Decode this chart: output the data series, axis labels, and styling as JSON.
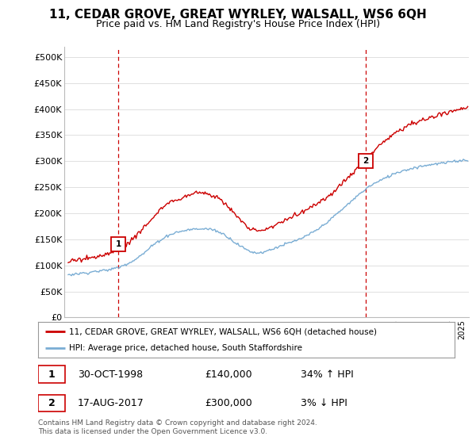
{
  "title": "11, CEDAR GROVE, GREAT WYRLEY, WALSALL, WS6 6QH",
  "subtitle": "Price paid vs. HM Land Registry's House Price Index (HPI)",
  "ylabel_ticks": [
    "£0",
    "£50K",
    "£100K",
    "£150K",
    "£200K",
    "£250K",
    "£300K",
    "£350K",
    "£400K",
    "£450K",
    "£500K"
  ],
  "ytick_values": [
    0,
    50000,
    100000,
    150000,
    200000,
    250000,
    300000,
    350000,
    400000,
    450000,
    500000
  ],
  "ylim": [
    0,
    520000
  ],
  "xlim_start": 1994.7,
  "xlim_end": 2025.5,
  "transaction1_x": 1998.83,
  "transaction1_y": 140000,
  "transaction1_label": "1",
  "transaction1_date": "30-OCT-1998",
  "transaction1_price": "£140,000",
  "transaction1_hpi": "34% ↑ HPI",
  "transaction2_x": 2017.62,
  "transaction2_y": 300000,
  "transaction2_label": "2",
  "transaction2_date": "17-AUG-2017",
  "transaction2_price": "£300,000",
  "transaction2_hpi": "3% ↓ HPI",
  "line_color_property": "#cc0000",
  "line_color_hpi": "#7aadd4",
  "legend_label_property": "11, CEDAR GROVE, GREAT WYRLEY, WALSALL, WS6 6QH (detached house)",
  "legend_label_hpi": "HPI: Average price, detached house, South Staffordshire",
  "footer": "Contains HM Land Registry data © Crown copyright and database right 2024.\nThis data is licensed under the Open Government Licence v3.0.",
  "background_color": "#ffffff",
  "grid_color": "#e0e0e0",
  "title_fontsize": 11,
  "subtitle_fontsize": 9
}
